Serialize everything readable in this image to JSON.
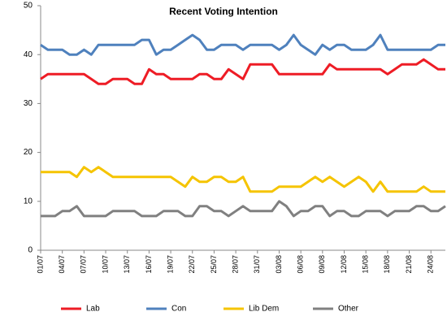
{
  "chart_data": {
    "type": "line",
    "title": "Recent Voting Intention",
    "categories": [
      "01/07",
      null,
      null,
      "04/07",
      null,
      null,
      "07/07",
      null,
      null,
      "10/07",
      null,
      null,
      "13/07",
      null,
      null,
      "16/07",
      null,
      null,
      "19/07",
      null,
      null,
      "22/07",
      null,
      null,
      "25/07",
      null,
      null,
      "28/07",
      null,
      null,
      "31/07",
      null,
      null,
      "03/08",
      null,
      null,
      "06/08",
      null,
      null,
      "09/08",
      null,
      null,
      "12/08",
      null,
      null,
      "15/08",
      null,
      null,
      "18/08",
      null,
      null,
      "21/08",
      null,
      null,
      "24/08",
      null,
      null
    ],
    "series": [
      {
        "name": "Lab",
        "color": "#ee1c25",
        "values": [
          35,
          36,
          36,
          36,
          36,
          36,
          36,
          35,
          34,
          34,
          35,
          35,
          35,
          34,
          34,
          37,
          36,
          36,
          35,
          35,
          35,
          35,
          36,
          36,
          35,
          35,
          37,
          36,
          35,
          38,
          38,
          38,
          38,
          36,
          36,
          36,
          36,
          36,
          36,
          36,
          38,
          37,
          37,
          37,
          37,
          37,
          37,
          37,
          36,
          37,
          38,
          38,
          38,
          39,
          38,
          37,
          37
        ]
      },
      {
        "name": "Con",
        "color": "#4f81bd",
        "values": [
          42,
          41,
          41,
          41,
          40,
          40,
          41,
          40,
          42,
          42,
          42,
          42,
          42,
          42,
          43,
          43,
          40,
          41,
          41,
          42,
          43,
          44,
          43,
          41,
          41,
          42,
          42,
          42,
          41,
          42,
          42,
          42,
          42,
          41,
          42,
          44,
          42,
          41,
          40,
          42,
          41,
          42,
          42,
          41,
          41,
          41,
          42,
          44,
          41,
          41,
          41,
          41,
          41,
          41,
          41,
          42,
          42
        ]
      },
      {
        "name": "Lib Dem",
        "color": "#f5c400",
        "values": [
          16,
          16,
          16,
          16,
          16,
          15,
          17,
          16,
          17,
          16,
          15,
          15,
          15,
          15,
          15,
          15,
          15,
          15,
          15,
          14,
          13,
          15,
          14,
          14,
          15,
          15,
          14,
          14,
          15,
          12,
          12,
          12,
          12,
          13,
          13,
          13,
          13,
          14,
          15,
          14,
          15,
          14,
          13,
          14,
          15,
          14,
          12,
          14,
          12,
          12,
          12,
          12,
          12,
          13,
          12,
          12,
          12
        ]
      },
      {
        "name": "Other",
        "color": "#808080",
        "values": [
          7,
          7,
          7,
          8,
          8,
          9,
          7,
          7,
          7,
          7,
          8,
          8,
          8,
          8,
          7,
          7,
          7,
          8,
          8,
          8,
          7,
          7,
          9,
          9,
          8,
          8,
          7,
          8,
          9,
          8,
          8,
          8,
          8,
          10,
          9,
          7,
          8,
          8,
          9,
          9,
          7,
          8,
          8,
          7,
          7,
          8,
          8,
          8,
          7,
          8,
          8,
          8,
          9,
          9,
          8,
          8,
          9
        ]
      }
    ],
    "ylim": [
      0,
      50
    ],
    "yticks": [
      0,
      10,
      20,
      30,
      40,
      50
    ],
    "grid": false,
    "legend": "bottom"
  }
}
